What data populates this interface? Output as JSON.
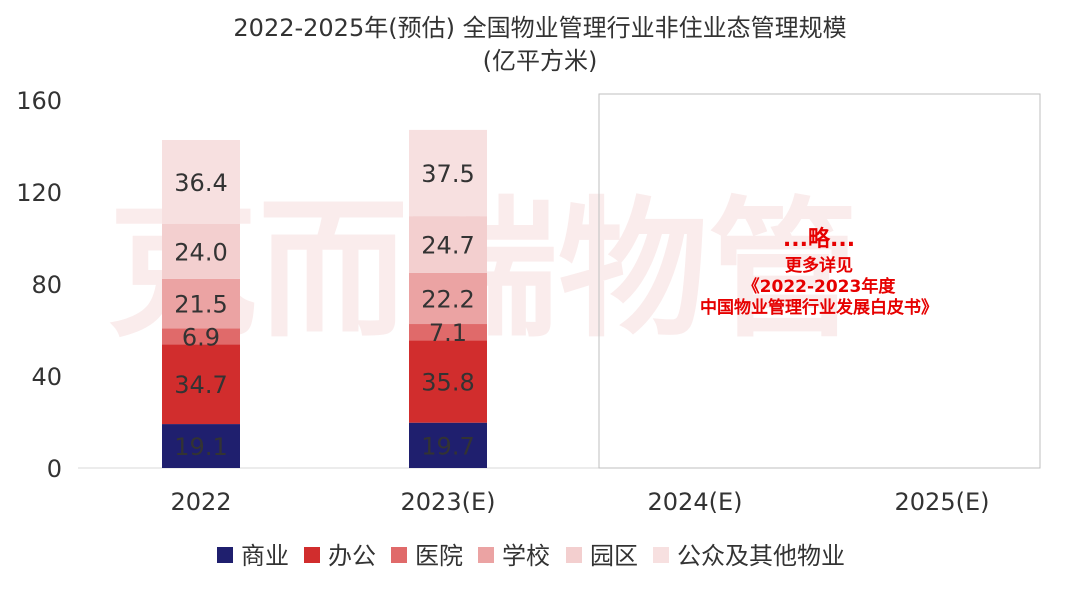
{
  "chart_data": {
    "type": "bar",
    "stacked": true,
    "title_line1": "2022-2025年(预估)  全国物业管理行业非住业态管理规模",
    "title_line2": "(亿平方米)",
    "categories": [
      "2022",
      "2023(E)",
      "2024(E)",
      "2025(E)"
    ],
    "ylim": [
      0,
      160
    ],
    "yticks": [
      "0",
      "40",
      "80",
      "120",
      "160"
    ],
    "grid": false,
    "legend_position": "bottom",
    "series": [
      {
        "name": "商业",
        "color": "#1f1f6e",
        "values": [
          19.1,
          19.7,
          null,
          null
        ],
        "labels": [
          "19.1",
          "19.7"
        ]
      },
      {
        "name": "办公",
        "color": "#d12d2d",
        "values": [
          34.7,
          35.8,
          null,
          null
        ],
        "labels": [
          "34.7",
          "35.8"
        ]
      },
      {
        "name": "医院",
        "color": "#e06a6a",
        "values": [
          6.9,
          7.1,
          null,
          null
        ],
        "labels": [
          "6.9",
          "7.1"
        ]
      },
      {
        "name": "学校",
        "color": "#eba3a3",
        "values": [
          21.5,
          22.2,
          null,
          null
        ],
        "labels": [
          "21.5",
          "22.2"
        ]
      },
      {
        "name": "园区",
        "color": "#f3cfcf",
        "values": [
          24.0,
          24.7,
          null,
          null
        ],
        "labels": [
          "24.0",
          "24.7"
        ]
      },
      {
        "name": "公众及其他物业",
        "color": "#f7e0e0",
        "values": [
          36.4,
          37.5,
          null,
          null
        ],
        "labels": [
          "36.4",
          "37.5"
        ]
      }
    ],
    "annotation": {
      "line1": "...略...",
      "line2": "更多详见",
      "line3": "《2022-2023年度",
      "line4": "中国物业管理行业发展白皮书》"
    },
    "watermark": "克而瑞物管"
  }
}
